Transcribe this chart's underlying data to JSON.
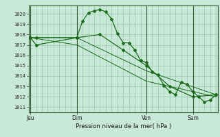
{
  "title": "Pression niveau de la mer( hPa )",
  "bg_color": "#c8e8d8",
  "grid_color": "#98c8a8",
  "line_color": "#1a6b1a",
  "ylim": [
    1010.5,
    1020.8
  ],
  "yticks": [
    1011,
    1012,
    1013,
    1014,
    1015,
    1016,
    1017,
    1018,
    1019,
    1020
  ],
  "day_labels": [
    "Jeu",
    "Dim",
    "Ven",
    "Sam"
  ],
  "day_positions": [
    0,
    8,
    20,
    28
  ],
  "xlim": [
    -0.3,
    32.3
  ],
  "series1": {
    "x": [
      0,
      1,
      8,
      9,
      10,
      11,
      12,
      13,
      14,
      15,
      16,
      17,
      18,
      19,
      20,
      21,
      22,
      23,
      24,
      25,
      26,
      27,
      28,
      29,
      30,
      31,
      32
    ],
    "y": [
      1017.7,
      1017.7,
      1017.7,
      1019.3,
      1020.1,
      1020.3,
      1020.4,
      1020.2,
      1019.5,
      1018.1,
      1017.2,
      1017.2,
      1016.5,
      1015.5,
      1015.3,
      1014.4,
      1014.1,
      1013.1,
      1012.5,
      1012.2,
      1013.4,
      1013.2,
      1012.5,
      1012.0,
      1011.5,
      1011.7,
      1012.2
    ]
  },
  "series2": {
    "x": [
      0,
      1,
      8,
      12,
      16,
      20,
      24,
      28,
      32
    ],
    "y": [
      1017.7,
      1017.0,
      1017.7,
      1018.0,
      1016.5,
      1015.0,
      1013.0,
      1012.0,
      1012.2
    ]
  },
  "series3": {
    "x": [
      0,
      8,
      20,
      32
    ],
    "y": [
      1017.7,
      1017.7,
      1014.5,
      1012.2
    ]
  },
  "series4": {
    "x": [
      0,
      8,
      20,
      32
    ],
    "y": [
      1017.7,
      1017.0,
      1013.5,
      1012.0
    ]
  }
}
